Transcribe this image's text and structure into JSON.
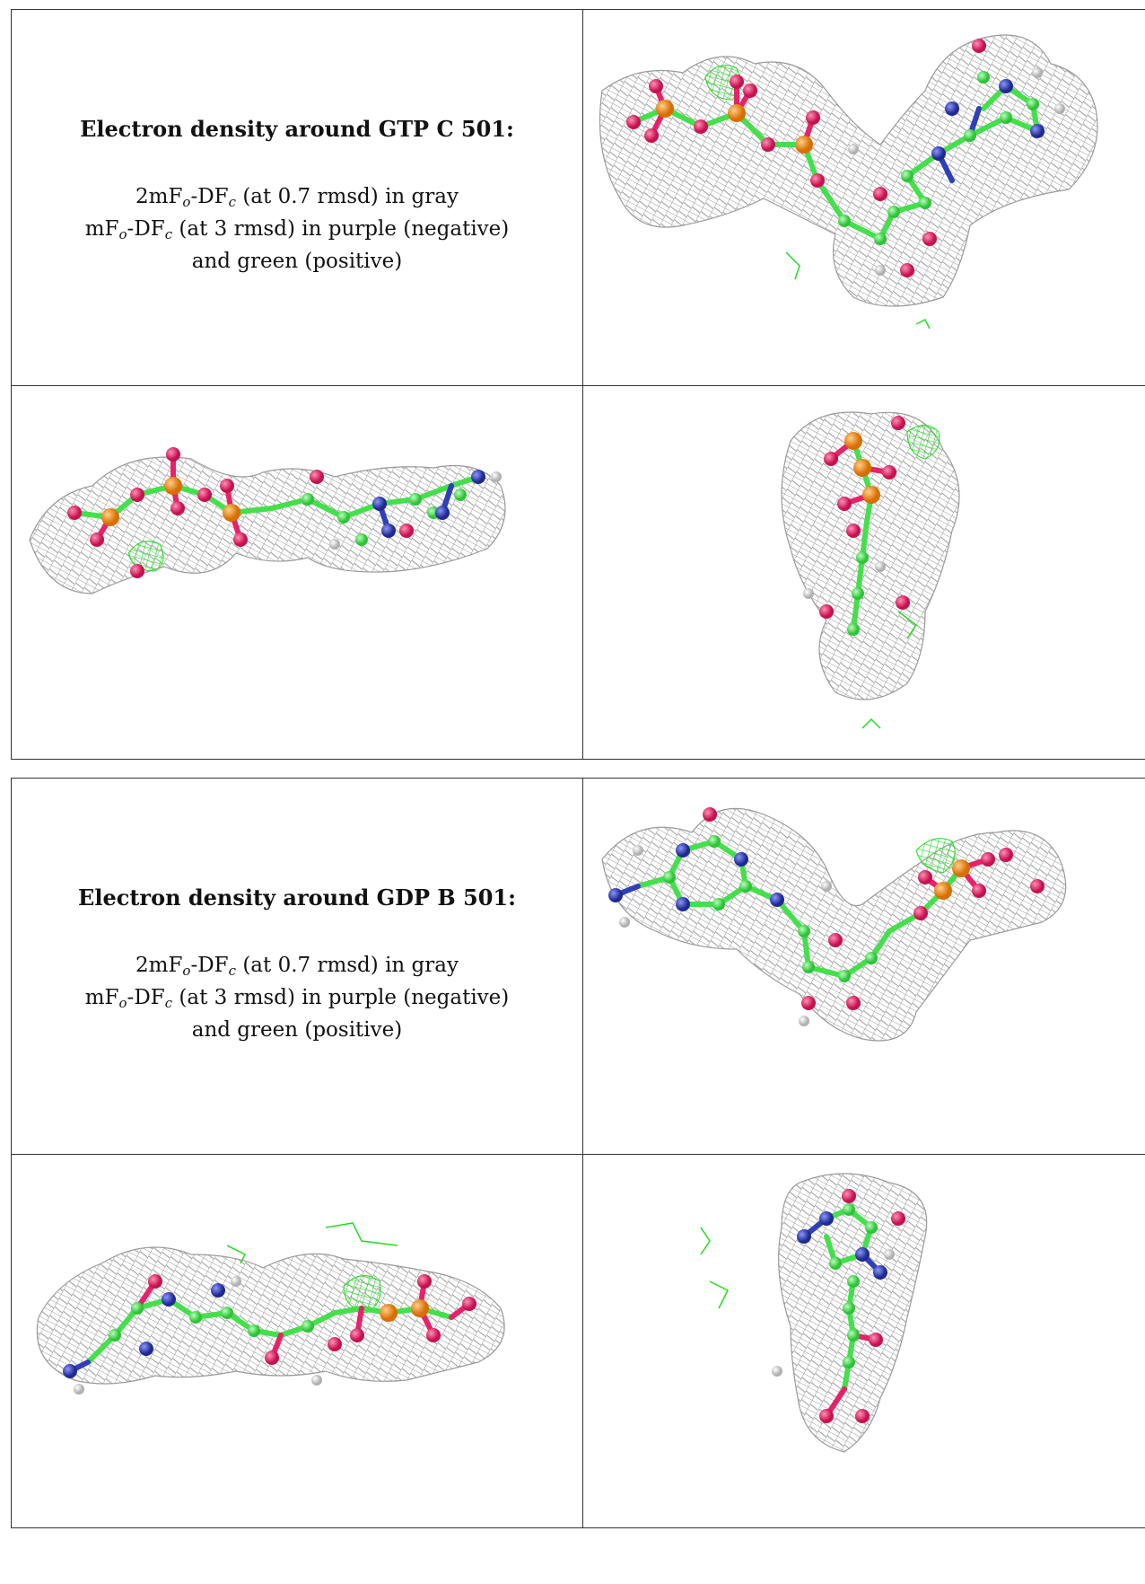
{
  "panels": [
    {
      "title": "Electron density around GTP C 501:",
      "line1": {
        "a": "2mF",
        "b": "o",
        "c": "-DF",
        "d": "c",
        "e": " (at 0.7 rmsd) in gray"
      },
      "line2": {
        "a": "mF",
        "b": "o",
        "c": "-DF",
        "d": "c",
        "e": " (at 3 rmsd) in purple (negative)"
      },
      "line3": "and green (positive)"
    },
    {
      "title": "Electron density around GDP B 501:",
      "line1": {
        "a": "2mF",
        "b": "o",
        "c": "-DF",
        "d": "c",
        "e": " (at 0.7 rmsd) in gray"
      },
      "line2": {
        "a": "mF",
        "b": "o",
        "c": "-DF",
        "d": "c",
        "e": " (at 3 rmsd) in purple (negative)"
      },
      "line3": "and green (positive)"
    }
  ],
  "colors": {
    "mesh": "#9a9a9a",
    "carbon": "#44e04c",
    "oxygen": "#e8226a",
    "nitrogen": "#2f3fb8",
    "phosphorus": "#f08c1a",
    "hydrogen": "#d8d8d8",
    "positive_density": "#22dd22"
  }
}
